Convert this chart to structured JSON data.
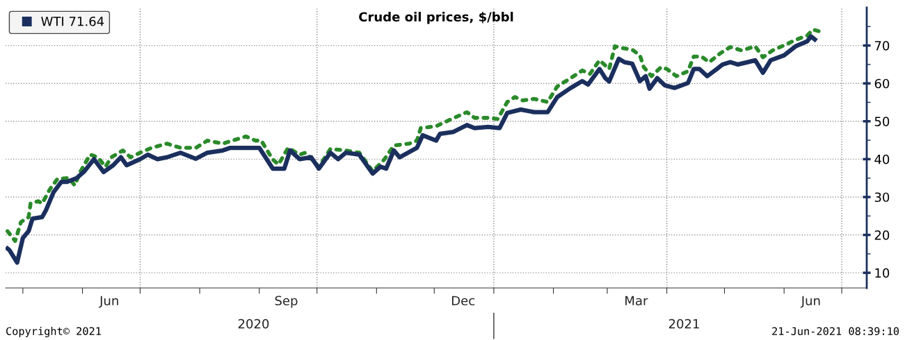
{
  "chart_data": {
    "type": "line",
    "title": "Crude oil prices, $/bbl",
    "series": [
      {
        "name": "WTI 71.64",
        "color": "#1b2f5e",
        "line_style": "solid",
        "x": [
          "2020-04-23",
          "2020-04-24",
          "2020-04-28",
          "2020-05-01",
          "2020-05-04",
          "2020-05-06",
          "2020-05-11",
          "2020-05-13",
          "2020-05-17",
          "2020-05-21",
          "2020-05-24",
          "2020-05-29",
          "2020-06-02",
          "2020-06-07",
          "2020-06-12",
          "2020-06-17",
          "2020-06-21",
          "2020-06-24",
          "2020-07-01",
          "2020-07-05",
          "2020-07-10",
          "2020-07-15",
          "2020-07-22",
          "2020-07-30",
          "2020-08-05",
          "2020-08-13",
          "2020-08-17",
          "2020-08-25",
          "2020-09-01",
          "2020-09-08",
          "2020-09-14",
          "2020-09-17",
          "2020-09-22",
          "2020-09-28",
          "2020-10-02",
          "2020-10-08",
          "2020-10-12",
          "2020-10-16",
          "2020-10-23",
          "2020-10-30",
          "2020-11-03",
          "2020-11-06",
          "2020-11-10",
          "2020-11-13",
          "2020-11-22",
          "2020-11-25",
          "2020-12-02",
          "2020-12-04",
          "2020-12-11",
          "2020-12-18",
          "2020-12-22",
          "2020-12-29",
          "2021-01-04",
          "2021-01-08",
          "2021-01-15",
          "2021-01-22",
          "2021-01-29",
          "2021-02-03",
          "2021-02-10",
          "2021-02-16",
          "2021-02-19",
          "2021-02-25",
          "2021-02-28",
          "2021-03-02",
          "2021-03-07",
          "2021-03-10",
          "2021-03-14",
          "2021-03-18",
          "2021-03-21",
          "2021-03-23",
          "2021-03-27",
          "2021-03-31",
          "2021-04-05",
          "2021-04-12",
          "2021-04-15",
          "2021-04-18",
          "2021-04-22",
          "2021-04-27",
          "2021-04-30",
          "2021-05-04",
          "2021-05-08",
          "2021-05-13",
          "2021-05-17",
          "2021-05-21",
          "2021-05-25",
          "2021-06-01",
          "2021-06-07",
          "2021-06-13",
          "2021-06-15",
          "2021-06-17"
        ],
        "values": [
          16.4,
          16,
          12.7,
          19.2,
          21,
          24.3,
          24.7,
          26.5,
          31.3,
          34,
          34,
          35,
          36.8,
          40,
          36.6,
          38.4,
          40.5,
          38.4,
          40,
          41.2,
          40,
          40.5,
          41.7,
          40.1,
          41.7,
          42.3,
          43,
          43,
          43,
          37.5,
          37.5,
          42.3,
          40,
          40.5,
          37.5,
          41.7,
          40,
          41.7,
          41.2,
          36.2,
          38,
          37.5,
          42.3,
          40.5,
          43,
          46.3,
          44.9,
          46.7,
          47.2,
          49,
          48.2,
          48.5,
          48.2,
          52.2,
          53.1,
          52.4,
          52.4,
          56.4,
          58.8,
          60.6,
          59.7,
          63.8,
          61.4,
          60.5,
          66.5,
          65.6,
          65.2,
          60.6,
          61.9,
          58.6,
          61.4,
          59.5,
          58.8,
          60.1,
          63.8,
          63.8,
          61.9,
          63.8,
          65,
          65.6,
          65,
          65.6,
          66.1,
          62.8,
          66.1,
          67.4,
          69.8,
          71.1,
          72.4,
          71.6
        ]
      },
      {
        "color": "#2a8a2a",
        "line_style": "dotted",
        "x": [
          "2020-04-23",
          "2020-04-27",
          "2020-04-30",
          "2020-05-04",
          "2020-05-05",
          "2020-05-09",
          "2020-05-11",
          "2020-05-15",
          "2020-05-19",
          "2020-05-25",
          "2020-05-28",
          "2020-05-31",
          "2020-06-05",
          "2020-06-09",
          "2020-06-13",
          "2020-06-16",
          "2020-06-22",
          "2020-06-26",
          "2020-07-01",
          "2020-07-07",
          "2020-07-15",
          "2020-07-22",
          "2020-07-30",
          "2020-08-05",
          "2020-08-13",
          "2020-08-25",
          "2020-08-30",
          "2020-09-02",
          "2020-09-08",
          "2020-09-11",
          "2020-09-16",
          "2020-09-22",
          "2020-09-25",
          "2020-10-02",
          "2020-10-08",
          "2020-10-16",
          "2020-10-23",
          "2020-10-30",
          "2020-11-05",
          "2020-11-10",
          "2020-11-18",
          "2020-11-22",
          "2020-11-24",
          "2020-12-02",
          "2020-12-10",
          "2020-12-18",
          "2020-12-22",
          "2020-12-29",
          "2021-01-03",
          "2021-01-08",
          "2021-01-12",
          "2021-01-16",
          "2021-01-22",
          "2021-01-29",
          "2021-02-03",
          "2021-02-10",
          "2021-02-16",
          "2021-02-20",
          "2021-02-25",
          "2021-03-02",
          "2021-03-05",
          "2021-03-09",
          "2021-03-14",
          "2021-03-18",
          "2021-03-20",
          "2021-03-24",
          "2021-03-29",
          "2021-04-01",
          "2021-04-06",
          "2021-04-12",
          "2021-04-15",
          "2021-04-19",
          "2021-04-23",
          "2021-04-29",
          "2021-05-04",
          "2021-05-10",
          "2021-05-17",
          "2021-05-21",
          "2021-05-26",
          "2021-06-03",
          "2021-06-07",
          "2021-06-13",
          "2021-06-16",
          "2021-06-21"
        ],
        "values": [
          21,
          18.4,
          23.4,
          24.7,
          28.3,
          28.9,
          28.3,
          32,
          34.8,
          35,
          33.1,
          36.8,
          41.2,
          40.5,
          38,
          40.5,
          42.3,
          40.5,
          41.7,
          43,
          44.1,
          43,
          43,
          44.9,
          44.1,
          46,
          44.9,
          44.9,
          39.9,
          38.6,
          43,
          41.2,
          41.7,
          38,
          42.7,
          42.3,
          41.7,
          36.8,
          39.9,
          43.6,
          44.1,
          44.9,
          48.2,
          48.7,
          50.6,
          52.4,
          50.9,
          50.9,
          50.6,
          55.1,
          56.4,
          55.5,
          55.9,
          55.1,
          59.2,
          61.4,
          63.4,
          62.5,
          66.1,
          63.8,
          69.8,
          69.3,
          68.9,
          67.4,
          64.3,
          61.9,
          64.3,
          63.8,
          61.9,
          63.2,
          67.1,
          67.1,
          65.6,
          68,
          69.6,
          68.7,
          69.8,
          66.9,
          68.7,
          70.5,
          71.5,
          72.6,
          74.2,
          73.5
        ]
      }
    ],
    "xlim": [
      "2020-04-22",
      "2021-07-14"
    ],
    "xticks": [
      {
        "value": "2020-05-01",
        "label": null
      },
      {
        "value": "2020-06-01",
        "label": null
      },
      {
        "value": "2020-06-15",
        "label": "Jun"
      },
      {
        "value": "2020-07-01",
        "label": null
      },
      {
        "value": "2020-08-01",
        "label": null
      },
      {
        "value": "2020-09-01",
        "label": null
      },
      {
        "value": "2020-09-15",
        "label": "Sep"
      },
      {
        "value": "2020-10-01",
        "label": null
      },
      {
        "value": "2020-11-01",
        "label": null
      },
      {
        "value": "2020-12-01",
        "label": null
      },
      {
        "value": "2020-12-16",
        "label": "Dec"
      },
      {
        "value": "2021-01-01",
        "label": null
      },
      {
        "value": "2021-02-01",
        "label": null
      },
      {
        "value": "2021-03-01",
        "label": null
      },
      {
        "value": "2021-03-16",
        "label": "Mar"
      },
      {
        "value": "2021-04-01",
        "label": null
      },
      {
        "value": "2021-05-01",
        "label": null
      },
      {
        "value": "2021-06-01",
        "label": null
      },
      {
        "value": "2021-06-15",
        "label": "Jun"
      },
      {
        "value": "2021-07-01",
        "label": null
      }
    ],
    "x2lim": [
      "2020-04-22",
      "2021-07-14"
    ],
    "x2ticks": [
      {
        "value": "2020-08-29",
        "label": "2020"
      },
      {
        "value": "2021-01-01",
        "label": null
      },
      {
        "value": "2021-04-10",
        "label": "2021"
      }
    ],
    "ylim": [
      6,
      80
    ],
    "yticks": [
      10,
      {
        "value": 15,
        "label": null
      },
      20,
      {
        "value": 25,
        "label": null
      },
      30,
      {
        "value": 35,
        "label": null
      },
      40,
      {
        "value": 45,
        "label": null
      },
      50,
      {
        "value": 55,
        "label": null
      },
      60,
      {
        "value": 65,
        "label": null
      },
      70,
      {
        "value": 75,
        "label": null
      }
    ],
    "grid": "y",
    "ref_lines": [
      {
        "axis": "x",
        "value": "2020-07-01",
        "color": "#888888",
        "line_style": "dotted"
      },
      {
        "axis": "x",
        "value": "2020-10-01",
        "color": "#888888",
        "line_style": "dotted"
      },
      {
        "axis": "x",
        "value": "2021-01-01",
        "color": "#888888",
        "line_style": "dotted"
      },
      {
        "axis": "x",
        "value": "2021-04-01",
        "color": "#888888",
        "line_style": "dotted"
      },
      {
        "axis": "x",
        "value": "2021-07-01",
        "color": "#888888",
        "line_style": "dotted"
      }
    ],
    "legend": "top left",
    "annotations": [
      "Copyright© 2021",
      "21-Jun-2021 08:39:10"
    ]
  }
}
